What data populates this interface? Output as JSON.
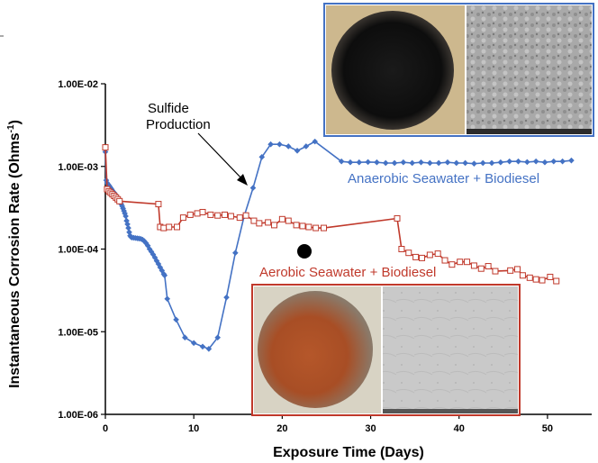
{
  "chart_data": {
    "type": "line",
    "title": "",
    "xlabel": "Exposure Time (Days)",
    "ylabel": "Instantaneous Corrosion Rate (Ohms",
    "ylabel_sup": "-1",
    "ylabel_tail": ")",
    "xlim": [
      0,
      55
    ],
    "ylim": [
      1e-06,
      0.01
    ],
    "yscale": "log",
    "x_ticks": [
      0,
      10,
      20,
      30,
      40,
      50
    ],
    "y_tick_labels": [
      "1.00E-06",
      "1.00E-05",
      "1.00E-04",
      "1.00E-03",
      "1.00E-02"
    ],
    "grid": false,
    "series": [
      {
        "name": "Anaerobic Seawater + Biodiesel",
        "color": "#4472c4",
        "marker": "diamond",
        "x": [
          0,
          0.1,
          0.2,
          0.3,
          0.4,
          0.5,
          0.6,
          0.7,
          0.8,
          0.9,
          1.0,
          1.1,
          1.2,
          1.3,
          1.4,
          1.5,
          1.6,
          1.7,
          1.8,
          1.9,
          2.0,
          2.1,
          2.2,
          2.3,
          2.4,
          2.5,
          2.6,
          2.7,
          2.8,
          2.9,
          3.0,
          3.2,
          3.4,
          3.6,
          3.8,
          4.0,
          4.2,
          4.4,
          4.6,
          4.8,
          5.0,
          5.2,
          5.4,
          5.6,
          5.8,
          6.0,
          6.2,
          6.4,
          6.6,
          6.7,
          7.0,
          8.0,
          9.0,
          10.0,
          11.0,
          11.7,
          12.7,
          13.7,
          14.7,
          15.7,
          16.7,
          17.7,
          18.7,
          19.7,
          20.7,
          21.7,
          22.7,
          23.7,
          26.7,
          27.7,
          28.7,
          29.7,
          30.7,
          31.7,
          32.7,
          33.7,
          34.7,
          35.7,
          36.7,
          37.7,
          38.7,
          39.7,
          40.7,
          41.7,
          42.7,
          43.7,
          44.7,
          45.7,
          46.7,
          47.7,
          48.7,
          49.7,
          50.7,
          51.7,
          52.7
        ],
        "values": [
          0.0015,
          0.00068,
          0.00063,
          0.00061,
          0.00059,
          0.00057,
          0.00055,
          0.00053,
          0.00051,
          0.00049,
          0.00048,
          0.00046,
          0.00045,
          0.00043,
          0.00042,
          0.0004,
          0.00039,
          0.00037,
          0.00035,
          0.00033,
          0.00031,
          0.00029,
          0.00027,
          0.00025,
          0.00022,
          0.0002,
          0.00018,
          0.00016,
          0.000145,
          0.00014,
          0.000138,
          0.000137,
          0.000136,
          0.000135,
          0.000134,
          0.000133,
          0.00013,
          0.000125,
          0.000118,
          0.00011,
          0.0001,
          9.3e-05,
          8.6e-05,
          7.9e-05,
          7.2e-05,
          6.6e-05,
          6e-05,
          5.5e-05,
          5e-05,
          4.8e-05,
          2.5e-05,
          1.4e-05,
          8.5e-06,
          7.3e-06,
          6.6e-06,
          6.2e-06,
          8.5e-06,
          2.6e-05,
          9e-05,
          0.00025,
          0.00055,
          0.0013,
          0.00185,
          0.00185,
          0.00175,
          0.00155,
          0.00175,
          0.002,
          0.00115,
          0.00112,
          0.00112,
          0.00113,
          0.00112,
          0.0011,
          0.0011,
          0.00112,
          0.0011,
          0.00112,
          0.0011,
          0.0011,
          0.00112,
          0.0011,
          0.0011,
          0.00108,
          0.0011,
          0.0011,
          0.00112,
          0.00115,
          0.00115,
          0.00113,
          0.00115,
          0.00112,
          0.00115,
          0.00115,
          0.00118
        ]
      },
      {
        "name": "Aerobic Seawater + Biodiesel",
        "color": "#c0392b",
        "marker": "square",
        "x": [
          0,
          0.2,
          0.4,
          0.6,
          0.8,
          1.0,
          1.2,
          1.4,
          1.6,
          6.0,
          6.2,
          6.6,
          7.2,
          8.1,
          8.8,
          9.6,
          10.4,
          11.0,
          11.9,
          12.7,
          13.5,
          14.2,
          15.2,
          15.9,
          16.8,
          17.4,
          18.4,
          19.1,
          20.0,
          20.7,
          21.6,
          22.3,
          23.0,
          23.8,
          24.7,
          33.0,
          33.5,
          34.3,
          35.1,
          35.8,
          36.7,
          37.6,
          38.4,
          39.2,
          40.1,
          40.9,
          41.7,
          42.5,
          43.3,
          44.1,
          45.8,
          46.6,
          47.2,
          48.0,
          48.7,
          49.4,
          50.3,
          51.0
        ],
        "values": [
          0.0017,
          0.00053,
          0.0005,
          0.00048,
          0.00046,
          0.00044,
          0.00042,
          0.0004,
          0.00038,
          0.00035,
          0.000185,
          0.00018,
          0.000185,
          0.000185,
          0.00024,
          0.00026,
          0.00027,
          0.00028,
          0.00026,
          0.000255,
          0.00026,
          0.00025,
          0.00024,
          0.000255,
          0.00022,
          0.000205,
          0.00021,
          0.000195,
          0.00023,
          0.00022,
          0.000195,
          0.00019,
          0.000185,
          0.00018,
          0.00018,
          0.000235,
          0.0001,
          9e-05,
          8e-05,
          7.8e-05,
          8.5e-05,
          8.8e-05,
          7.3e-05,
          6.5e-05,
          7e-05,
          7e-05,
          6.3e-05,
          5.8e-05,
          6.2e-05,
          5.4e-05,
          5.5e-05,
          5.7e-05,
          4.8e-05,
          4.5e-05,
          4.3e-05,
          4.2e-05,
          4.6e-05,
          4.1e-05
        ]
      }
    ],
    "annotations": {
      "sulfide_line1": "Sulfide",
      "sulfide_line2": "Production",
      "anaerobic_label": "Anaerobic Seawater + Biodiesel",
      "aerobic_label": "Aerobic Seawater + Biodiesel"
    }
  },
  "colors": {
    "anaerobic": "#4472c4",
    "aerobic": "#c0392b"
  }
}
